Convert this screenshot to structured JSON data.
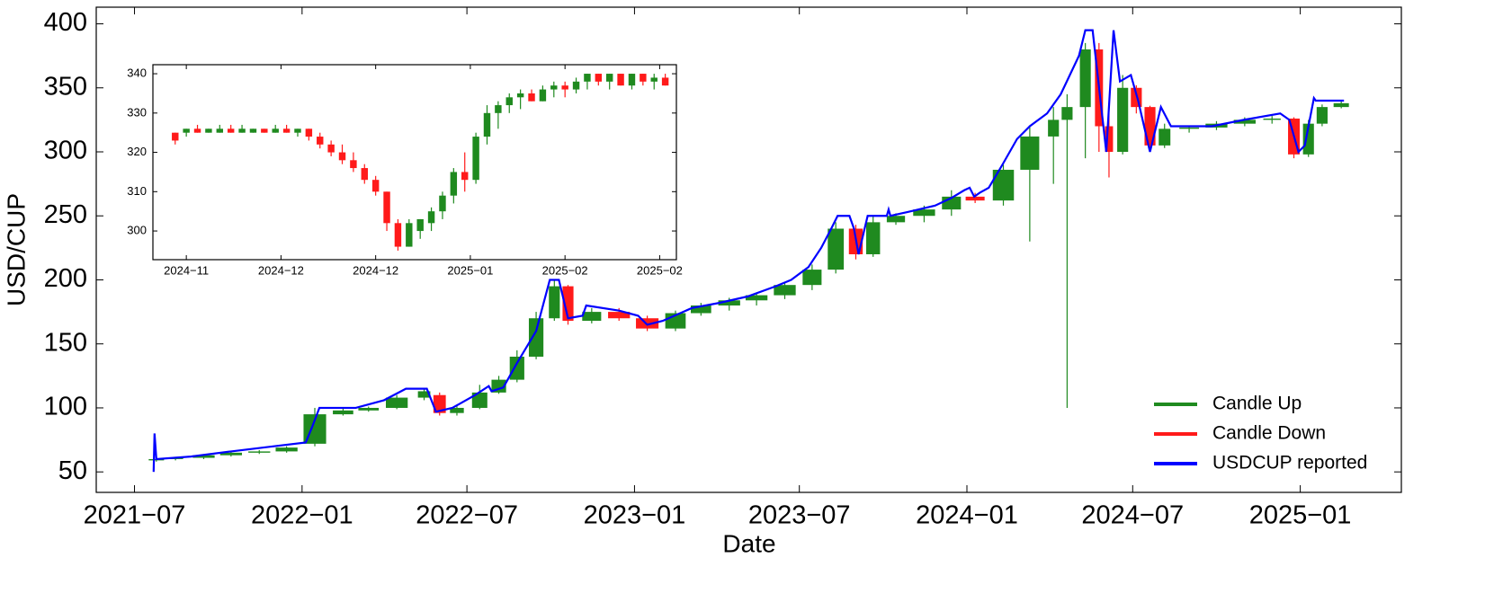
{
  "chart_data": [
    {
      "type": "candlestick",
      "xlabel": "Date",
      "ylabel": "USD/CUP",
      "xlim": [
        "2021-05-20",
        "2025-04-22"
      ],
      "ylim": [
        34,
        413
      ],
      "xticks": [
        {
          "value": "2021-07-01",
          "label": "2021−07"
        },
        {
          "value": "2022-01-01",
          "label": "2022−01"
        },
        {
          "value": "2022-07-01",
          "label": "2022−07"
        },
        {
          "value": "2023-01-01",
          "label": "2023−01"
        },
        {
          "value": "2023-07-01",
          "label": "2023−07"
        },
        {
          "value": "2024-01-01",
          "label": "2024−01"
        },
        {
          "value": "2024-07-01",
          "label": "2024−07"
        },
        {
          "value": "2025-01-01",
          "label": "2025−01"
        }
      ],
      "yticks": [
        50,
        100,
        150,
        200,
        250,
        300,
        350,
        400
      ],
      "legend": "lower right",
      "series": [
        {
          "name": "Candle Up",
          "color": "#1f8a1f"
        },
        {
          "name": "Candle Down",
          "color": "#ff1a1a"
        },
        {
          "name": "USDCUP reported",
          "color": "#0000ff",
          "x": [
            "2021-07-22",
            "2021-07-23",
            "2021-07-25",
            "2021-09-01",
            "2021-10-15",
            "2021-12-01",
            "2022-01-05",
            "2022-01-12",
            "2022-01-20",
            "2022-03-01",
            "2022-04-01",
            "2022-04-25",
            "2022-05-18",
            "2022-05-28",
            "2022-06-15",
            "2022-07-10",
            "2022-07-25",
            "2022-07-28",
            "2022-08-10",
            "2022-08-25",
            "2022-09-15",
            "2022-09-30",
            "2022-10-10",
            "2022-10-20",
            "2022-11-05",
            "2022-11-09",
            "2022-12-15",
            "2023-01-05",
            "2023-01-15",
            "2023-02-01",
            "2023-03-05",
            "2023-04-04",
            "2023-05-05",
            "2023-06-05",
            "2023-06-22",
            "2023-07-11",
            "2023-07-25",
            "2023-08-05",
            "2023-08-12",
            "2023-08-25",
            "2023-08-30",
            "2023-09-04",
            "2023-09-14",
            "2023-10-05",
            "2023-10-07",
            "2023-10-09",
            "2023-10-28",
            "2023-11-27",
            "2023-12-15",
            "2023-12-29",
            "2024-01-04",
            "2024-01-09",
            "2024-01-15",
            "2024-01-25",
            "2024-02-09",
            "2024-02-25",
            "2024-03-10",
            "2024-03-29",
            "2024-04-13",
            "2024-04-23",
            "2024-05-03",
            "2024-05-10",
            "2024-05-18",
            "2024-06-02",
            "2024-06-10",
            "2024-06-17",
            "2024-06-29",
            "2024-07-07",
            "2024-07-20",
            "2024-08-01",
            "2024-08-12",
            "2024-09-26",
            "2024-10-31",
            "2024-12-10",
            "2024-12-20",
            "2024-12-30",
            "2025-01-06",
            "2025-01-10",
            "2025-01-16",
            "2025-01-18",
            "2025-02-18"
          ],
          "values": [
            50,
            80,
            60,
            62,
            66,
            70,
            73,
            85,
            100,
            100,
            106,
            115,
            115,
            97,
            100,
            110,
            117,
            113,
            116,
            135,
            160,
            200,
            200,
            170,
            172,
            180,
            176,
            172,
            165,
            168,
            178,
            182,
            187,
            195,
            200,
            210,
            225,
            240,
            250,
            250,
            240,
            220,
            250,
            250,
            255,
            250,
            253,
            258,
            264,
            270,
            272,
            265,
            268,
            272,
            290,
            310,
            320,
            330,
            345,
            360,
            375,
            395,
            395,
            300,
            395,
            355,
            360,
            340,
            300,
            335,
            320,
            320,
            325,
            330,
            325,
            300,
            305,
            320,
            342,
            340,
            340
          ]
        }
      ],
      "candles": {
        "x": [
          "2021-07-25",
          "2021-08-15",
          "2021-09-15",
          "2021-10-15",
          "2021-11-15",
          "2021-12-15",
          "2022-01-15",
          "2022-02-15",
          "2022-03-15",
          "2022-04-15",
          "2022-05-15",
          "2022-06-01",
          "2022-06-20",
          "2022-07-15",
          "2022-08-05",
          "2022-08-25",
          "2022-09-15",
          "2022-10-05",
          "2022-10-20",
          "2022-11-15",
          "2022-12-15",
          "2023-01-15",
          "2023-02-15",
          "2023-03-15",
          "2023-04-15",
          "2023-05-15",
          "2023-06-15",
          "2023-07-15",
          "2023-08-10",
          "2023-09-01",
          "2023-09-20",
          "2023-10-15",
          "2023-11-15",
          "2023-12-15",
          "2024-01-10",
          "2024-02-10",
          "2024-03-10",
          "2024-04-05",
          "2024-04-20",
          "2024-05-10",
          "2024-05-25",
          "2024-06-05",
          "2024-06-20",
          "2024-07-05",
          "2024-07-20",
          "2024-08-05",
          "2024-09-01",
          "2024-10-01",
          "2024-11-01",
          "2024-12-01",
          "2024-12-25",
          "2025-01-10",
          "2025-01-25",
          "2025-02-15"
        ],
        "open": [
          59,
          60,
          61,
          63,
          65,
          66,
          72,
          95,
          98,
          100,
          108,
          110,
          96,
          100,
          112,
          122,
          140,
          170,
          195,
          168,
          175,
          170,
          162,
          174,
          180,
          184,
          188,
          196,
          208,
          240,
          220,
          245,
          250,
          255,
          265,
          262,
          286,
          312,
          325,
          335,
          380,
          320,
          300,
          350,
          335,
          305,
          318,
          319,
          322,
          325,
          326,
          298,
          322,
          335
        ],
        "high": [
          61,
          61,
          63,
          66,
          67,
          70,
          100,
          100,
          101,
          110,
          115,
          112,
          102,
          118,
          125,
          145,
          175,
          200,
          196,
          178,
          178,
          172,
          176,
          182,
          186,
          190,
          198,
          212,
          245,
          243,
          250,
          252,
          258,
          270,
          268,
          290,
          320,
          335,
          345,
          385,
          385,
          330,
          360,
          352,
          336,
          322,
          320,
          324,
          327,
          328,
          327,
          325,
          337,
          340
        ],
        "low": [
          58,
          59,
          60,
          62,
          64,
          65,
          70,
          94,
          97,
          99,
          106,
          94,
          94,
          99,
          111,
          120,
          138,
          168,
          165,
          166,
          168,
          160,
          160,
          172,
          176,
          180,
          185,
          192,
          205,
          216,
          218,
          243,
          245,
          250,
          260,
          258,
          230,
          275,
          100,
          295,
          300,
          280,
          298,
          330,
          300,
          303,
          315,
          317,
          320,
          322,
          295,
          296,
          320,
          334
        ],
        "close": [
          60,
          61,
          63,
          65,
          66,
          69,
          95,
          98,
          100,
          108,
          113,
          96,
          100,
          112,
          122,
          140,
          170,
          195,
          168,
          175,
          170,
          162,
          174,
          180,
          184,
          188,
          196,
          208,
          240,
          220,
          245,
          250,
          255,
          265,
          262,
          286,
          312,
          325,
          335,
          380,
          320,
          300,
          350,
          335,
          305,
          318,
          319,
          322,
          325,
          326,
          298,
          322,
          335,
          338
        ]
      }
    },
    {
      "type": "candlestick",
      "xlim": [
        "2024-11-19",
        "2025-02-21"
      ],
      "ylim": [
        292.7,
        342.3
      ],
      "xticks": [
        {
          "value": "2024-11-25",
          "label": "2024−11"
        },
        {
          "value": "2024-12-12",
          "label": "2024−12"
        },
        {
          "value": "2024-12-29",
          "label": "2024−12"
        },
        {
          "value": "2025-01-15",
          "label": "2025−01"
        },
        {
          "value": "2025-02-01",
          "label": "2025−02"
        },
        {
          "value": "2025-02-18",
          "label": "2025−02"
        }
      ],
      "yticks": [
        300,
        310,
        320,
        330,
        340
      ],
      "up_color": "#1f8a1f",
      "down_color": "#ff1a1a",
      "candles": {
        "x": [
          "2024-11-23",
          "2024-11-25",
          "2024-11-27",
          "2024-11-29",
          "2024-12-01",
          "2024-12-03",
          "2024-12-05",
          "2024-12-07",
          "2024-12-09",
          "2024-12-11",
          "2024-12-13",
          "2024-12-15",
          "2024-12-17",
          "2024-12-19",
          "2024-12-21",
          "2024-12-23",
          "2024-12-25",
          "2024-12-27",
          "2024-12-29",
          "2024-12-31",
          "2025-01-02",
          "2025-01-04",
          "2025-01-06",
          "2025-01-08",
          "2025-01-10",
          "2025-01-12",
          "2025-01-14",
          "2025-01-16",
          "2025-01-18",
          "2025-01-20",
          "2025-01-22",
          "2025-01-24",
          "2025-01-26",
          "2025-01-28",
          "2025-01-30",
          "2025-02-01",
          "2025-02-03",
          "2025-02-05",
          "2025-02-07",
          "2025-02-09",
          "2025-02-11",
          "2025-02-13",
          "2025-02-15",
          "2025-02-17",
          "2025-02-19"
        ],
        "open": [
          325,
          325,
          326,
          325,
          325,
          326,
          325,
          325,
          326,
          325,
          326,
          325,
          326,
          324,
          322,
          320,
          318,
          316,
          313,
          310,
          302,
          296,
          300,
          302,
          305,
          309,
          315,
          313,
          324,
          330,
          332,
          334,
          335,
          333,
          336,
          337,
          336,
          338,
          340,
          338,
          340,
          337,
          340,
          338,
          339
        ],
        "high": [
          325,
          326,
          327,
          326,
          327,
          327,
          327,
          326,
          326,
          327,
          327,
          326,
          326,
          325,
          323,
          322,
          320,
          317,
          314,
          310,
          303,
          303,
          303,
          306,
          310,
          316,
          320,
          325,
          332,
          333,
          335,
          336,
          336,
          337,
          338,
          338,
          339,
          340,
          340,
          340,
          340,
          340,
          340,
          340,
          340
        ],
        "low": [
          322,
          324,
          325,
          325,
          325,
          325,
          325,
          325,
          325,
          325,
          325,
          324,
          323,
          321,
          319,
          317,
          315,
          312,
          309,
          300,
          295,
          296,
          298,
          300,
          303,
          307,
          310,
          312,
          322,
          326,
          330,
          331,
          333,
          333,
          334,
          334,
          335,
          336,
          337,
          336,
          337,
          336,
          337,
          336,
          337
        ],
        "close": [
          323,
          326,
          325,
          326,
          326,
          325,
          326,
          326,
          325,
          326,
          325,
          326,
          324,
          322,
          320,
          318,
          316,
          313,
          310,
          302,
          296,
          302,
          303,
          305,
          309,
          315,
          313,
          324,
          330,
          332,
          334,
          335,
          333,
          336,
          337,
          336,
          338,
          340,
          338,
          340,
          337,
          340,
          338,
          339,
          337
        ]
      }
    }
  ]
}
